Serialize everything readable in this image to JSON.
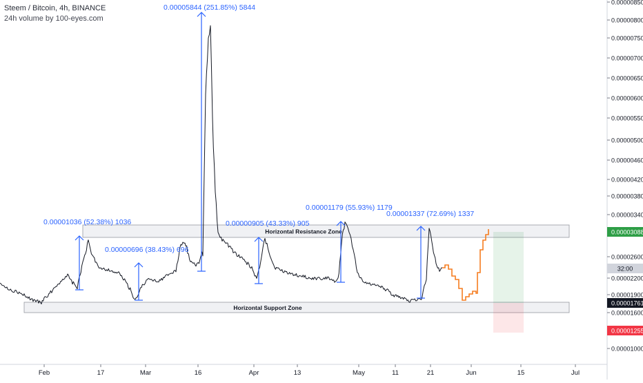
{
  "header": {
    "title": "Steem / Bitcoin, 4h, BINANCE",
    "subtitle": "24h volume by 100-eyes.com"
  },
  "chart_data": {
    "type": "line",
    "symbol": "STEEM/BTC",
    "interval": "4h",
    "exchange": "BINANCE",
    "y_scale": "log",
    "ylim": [
      8.5e-06,
      9.2e-06
    ],
    "x_axis_labels": [
      "Feb",
      "17",
      "Mar",
      "16",
      "Apr",
      "13",
      "May",
      "11",
      "21",
      "Jun",
      "15",
      "Jul"
    ],
    "y_axis_ticks": [
      "0.00000850",
      "0.00000800",
      "0.00000750",
      "0.00000700",
      "0.00000650",
      "0.00000600",
      "0.00000550",
      "0.00000500",
      "0.00000460",
      "0.00000420",
      "0.00000380",
      "0.00000340",
      "0.00003088",
      "0.00002600",
      "0.00002200",
      "0.00001900",
      "0.00001761",
      "0.00001600",
      "0.00001255",
      "0.00001000"
    ],
    "price_badges": [
      {
        "label": "0.00003088",
        "color": "#2e9e46"
      },
      {
        "label": "32:00",
        "color": "#d1d4dc"
      },
      {
        "label": "0.00001761",
        "color": "#131722"
      },
      {
        "label": "0.00001255",
        "color": "#f23645"
      }
    ],
    "zones": [
      {
        "label": "Horizontal Resistance Zone"
      },
      {
        "label": "Horizontal Support Zone"
      }
    ],
    "measurements": [
      {
        "label": "0.00001036 (52.38%) 1036"
      },
      {
        "label": "0.00000696 (38.43%) 696"
      },
      {
        "label": "0.00005844 (251.85%) 5844"
      },
      {
        "label": "0.00000905 (43.33%) 905"
      },
      {
        "label": "0.00001179 (55.93%) 1179"
      },
      {
        "label": "0.00001337 (72.69%) 1337"
      }
    ],
    "colors": {
      "price_line": "#131722",
      "projection": "#f57c1f",
      "measure": "#2962ff",
      "target_zone": "#2e9e46",
      "stop_zone": "#f23645"
    }
  }
}
